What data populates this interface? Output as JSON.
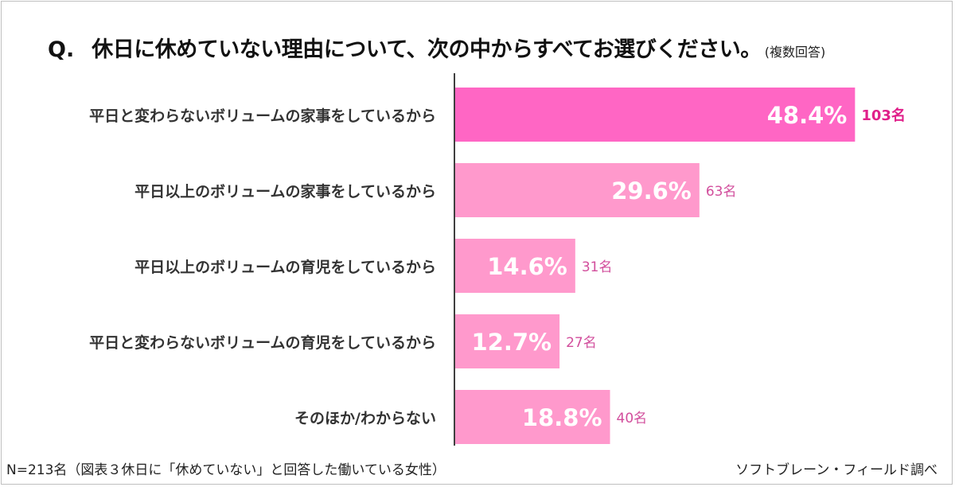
{
  "title": {
    "q": "Q.",
    "main": "休日に休めていない理由について、次の中からすべてお選びください。",
    "note": "(複数回答)"
  },
  "footer": {
    "left": "N=213名（図表３休日に「休めていない」と回答した働いている女性）",
    "right": "ソフトブレーン・フィールド調べ"
  },
  "colors": {
    "highlight_bar": "#ff66c4",
    "bar": "#ff99cc",
    "highlight_count": "#e0208a",
    "count": "#d24e9c",
    "axis": "#404040",
    "label": "#333333"
  },
  "chart_data": {
    "type": "bar",
    "orientation": "horizontal",
    "categories": [
      "平日と変わらないボリュームの家事をしているから",
      "平日以上のボリュームの家事をしているから",
      "平日以上のボリュームの育児をしているから",
      "平日と変わらないボリュームの育児をしているから",
      "そのほか/わからない"
    ],
    "values": [
      48.4,
      29.6,
      14.6,
      12.7,
      18.8
    ],
    "value_labels": [
      "48.4%",
      "29.6%",
      "14.6%",
      "12.7%",
      "18.8%"
    ],
    "counts": [
      "103名",
      "63名",
      "31名",
      "27名",
      "40名"
    ],
    "highlight_index": 0,
    "xlim": [
      0,
      60
    ],
    "grid": false,
    "legend": "none"
  }
}
